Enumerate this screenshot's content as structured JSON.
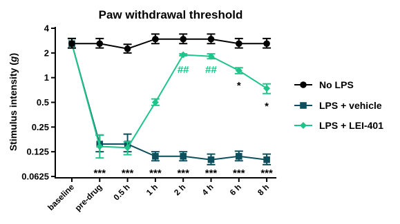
{
  "chart_data": {
    "type": "line",
    "title": "Paw withdrawal threshold",
    "ylabel_main": "Stimulus intensity (",
    "ylabel_unit": "g",
    "ylabel_close": ")",
    "xlabel": "",
    "y_scale": "log2",
    "ylim": [
      0.0625,
      4
    ],
    "y_ticks": [
      0.0625,
      0.125,
      0.25,
      0.5,
      1,
      2,
      4
    ],
    "y_tick_labels": [
      "0.0625",
      "0.125",
      "0.25",
      "0.5",
      "1",
      "2",
      "4"
    ],
    "categories": [
      "baseline",
      "pre-drug",
      "0.5 h",
      "1 h",
      "2 h",
      "4 h",
      "6 h",
      "8 h"
    ],
    "legend_position": "right",
    "grid": false,
    "series": [
      {
        "name": "No LPS",
        "color": "#000000",
        "marker": "circle",
        "values": [
          2.6,
          2.6,
          2.25,
          2.95,
          2.95,
          2.95,
          2.6,
          2.6
        ],
        "err_low": [
          2.3,
          2.3,
          2.0,
          2.6,
          2.6,
          2.6,
          2.3,
          2.3
        ],
        "err_high": [
          3.0,
          3.0,
          2.55,
          3.4,
          3.4,
          3.4,
          3.0,
          3.0
        ]
      },
      {
        "name": "LPS + vehicle",
        "color": "#0d4f5c",
        "marker": "square",
        "values": [
          2.6,
          0.155,
          0.155,
          0.11,
          0.11,
          0.1,
          0.11,
          0.1
        ],
        "err_low": [
          2.3,
          0.125,
          0.125,
          0.097,
          0.097,
          0.087,
          0.097,
          0.087
        ],
        "err_high": [
          3.0,
          0.2,
          0.205,
          0.125,
          0.125,
          0.117,
          0.127,
          0.117
        ]
      },
      {
        "name": "LPS + LEI-401",
        "color": "#1ec48a",
        "marker": "diamond",
        "values": [
          2.6,
          0.145,
          0.14,
          0.5,
          1.9,
          1.82,
          1.22,
          0.74
        ],
        "err_low": [
          2.3,
          0.105,
          0.115,
          0.46,
          1.85,
          1.7,
          1.12,
          0.64
        ],
        "err_high": [
          3.0,
          0.2,
          0.165,
          0.55,
          1.95,
          1.95,
          1.32,
          0.84
        ]
      }
    ],
    "annotations": {
      "triple_star": {
        "text": "***",
        "color": "#000000",
        "categories": [
          "pre-drug",
          "0.5 h",
          "1 h",
          "2 h",
          "4 h",
          "6 h",
          "8 h"
        ]
      },
      "hash": {
        "text": "##",
        "color": "#1ec48a",
        "categories": [
          "2 h",
          "4 h"
        ]
      },
      "single_star": {
        "text": "*",
        "color": "#000000",
        "categories": [
          "6 h",
          "8 h"
        ]
      }
    }
  }
}
